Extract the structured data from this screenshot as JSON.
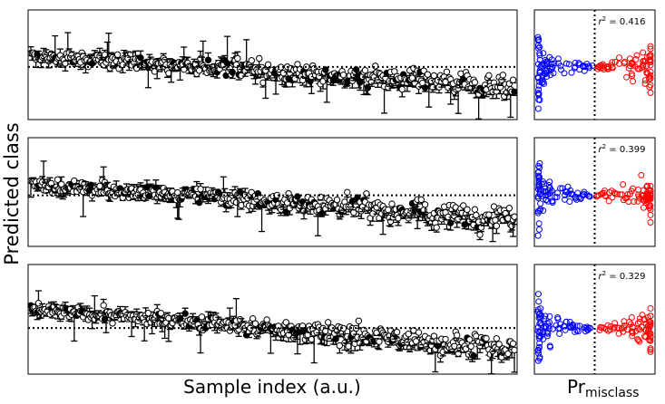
{
  "figure": {
    "ylabel": "Predicted class",
    "xlabel_left": "Sample index (a.u.)",
    "xlabel_right_main": "Pr",
    "xlabel_right_sub": "misclass"
  },
  "colors": {
    "marker_fill_main": "#ffffff",
    "marker_fill_alt": "#000000",
    "marker_edge": "#000000",
    "below_threshold": "#0000ff",
    "above_threshold": "#ff0000",
    "reference_line": "#000000"
  },
  "chart_data": [
    {
      "type": "scatter",
      "panel": "row-1-main",
      "xlabel": "",
      "ylabel": "",
      "n_points": 380,
      "y_start": 0.58,
      "y_end": 0.3,
      "ylim": [
        0,
        1
      ],
      "reference_y": 0.48,
      "error_bars": true,
      "ticks": "none"
    },
    {
      "type": "scatter",
      "panel": "row-1-side",
      "r2_prefix": "r",
      "r2_exp": "2",
      "r2_text": " =  0.416",
      "threshold_x": 0.5,
      "reference_y": 0.48,
      "xlim": [
        0,
        1
      ],
      "ylim": [
        0,
        1
      ]
    },
    {
      "type": "scatter",
      "panel": "row-2-main",
      "xlabel": "",
      "ylabel": "",
      "n_points": 380,
      "y_start": 0.57,
      "y_end": 0.26,
      "ylim": [
        0,
        1
      ],
      "reference_y": 0.47,
      "error_bars": true,
      "ticks": "none"
    },
    {
      "type": "scatter",
      "panel": "row-2-side",
      "r2_prefix": "r",
      "r2_exp": "2",
      "r2_text": " =  0.399",
      "threshold_x": 0.5,
      "reference_y": 0.47,
      "xlim": [
        0,
        1
      ],
      "ylim": [
        0,
        1
      ]
    },
    {
      "type": "scatter",
      "panel": "row-3-main",
      "xlabel": "",
      "ylabel": "",
      "n_points": 380,
      "y_start": 0.59,
      "y_end": 0.24,
      "ylim": [
        0,
        1
      ],
      "reference_y": 0.42,
      "error_bars": true,
      "ticks": "none"
    },
    {
      "type": "scatter",
      "panel": "row-3-side",
      "r2_prefix": "r",
      "r2_exp": "2",
      "r2_text": " =  0.329",
      "threshold_x": 0.5,
      "reference_y": 0.42,
      "xlim": [
        0,
        1
      ],
      "ylim": [
        0,
        1
      ]
    }
  ]
}
